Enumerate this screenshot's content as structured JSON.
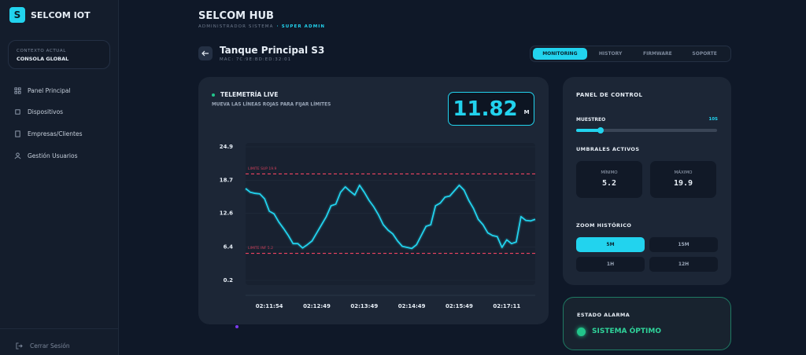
{
  "sidebar": {
    "logo_letter": "S",
    "brand": "SELCOM IOT",
    "context_label": "CONTEXTO ACTUAL",
    "context_value": "CONSOLA GLOBAL",
    "nav": [
      "Panel Principal",
      "Dispositivos",
      "Empresas/Clientes",
      "Gestión Usuarios"
    ],
    "logout": "Cerrar Sesión"
  },
  "header": {
    "title": "SELCOM HUB",
    "subtitle": "ADMINISTRADOR SISTEMA",
    "role": "· SUPER ADMIN"
  },
  "device": {
    "name": "Tanque Principal S3",
    "mac": "MAC: 7C:9E:BD:ED:32:01"
  },
  "tabs": [
    "MONITORING",
    "HISTORY",
    "FIRMWARE",
    "SOPORTE"
  ],
  "telemetry": {
    "title": "TELEMETRÍA LIVE",
    "hint": "MUEVA LAS LÍNEAS ROJAS PARA FIJAR LÍMITES",
    "readout": "11.82",
    "unit": "M"
  },
  "chart_data": {
    "type": "line",
    "color": "#22d3ee",
    "categories": [
      null,
      null,
      null,
      null,
      null,
      "02:11:54",
      null,
      null,
      null,
      null,
      null,
      null,
      null,
      null,
      null,
      "02:12:49",
      null,
      null,
      null,
      null,
      null,
      null,
      null,
      null,
      null,
      "02:13:49",
      null,
      null,
      null,
      null,
      null,
      null,
      null,
      null,
      null,
      "02:14:49",
      null,
      null,
      null,
      null,
      null,
      null,
      null,
      null,
      null,
      "02:15:49",
      null,
      null,
      null,
      null,
      null,
      null,
      null,
      null,
      null,
      "02:17:11",
      null,
      null,
      null,
      null,
      null,
      null
    ],
    "values": [
      17.2,
      16.5,
      16.3,
      16.2,
      15.3,
      13,
      12.5,
      11,
      9.8,
      8.5,
      7,
      7,
      6.2,
      6.8,
      7.5,
      9,
      10.5,
      12,
      14,
      14.3,
      16.5,
      17.5,
      16.7,
      16,
      17.8,
      16.5,
      15,
      13.8,
      12.3,
      10.5,
      9.5,
      8.8,
      7.5,
      6.5,
      6.3,
      6.1,
      6.8,
      8.5,
      10.2,
      10.5,
      14,
      14.5,
      15.6,
      15.8,
      16.8,
      17.8,
      16.9,
      15,
      13.5,
      11.5,
      10.5,
      9,
      8.5,
      8.3,
      6.3,
      7.7,
      7,
      7.3,
      12,
      11.3,
      11.2,
      11.5
    ],
    "ylim": [
      0.2,
      24.9
    ],
    "yticks": [
      24.9,
      18.7,
      12.6,
      6.4,
      0.2
    ],
    "grid": true,
    "thresholds": [
      {
        "label": "LIMITE SUP 19.9",
        "value": 19.9,
        "color": "#ef4461"
      },
      {
        "label": "LIMITE INF 5.2",
        "value": 5.2,
        "color": "#ef4461"
      }
    ]
  },
  "control_panel": {
    "title": "PANEL DE CONTROL",
    "sampling_label": "MUESTREO",
    "sampling_value": "10S",
    "thresholds_title": "UMBRALES ACTIVOS",
    "min_label": "MÍNIMO",
    "min_value": "5.2",
    "max_label": "MÁXIMO",
    "max_value": "19.9",
    "zoom_title": "ZOOM HISTÓRICO",
    "zoom_options": [
      "5M",
      "15M",
      "1H",
      "12H"
    ]
  },
  "alarm": {
    "title": "ESTADO ALARMA",
    "status": "SISTEMA ÓPTIMO"
  }
}
